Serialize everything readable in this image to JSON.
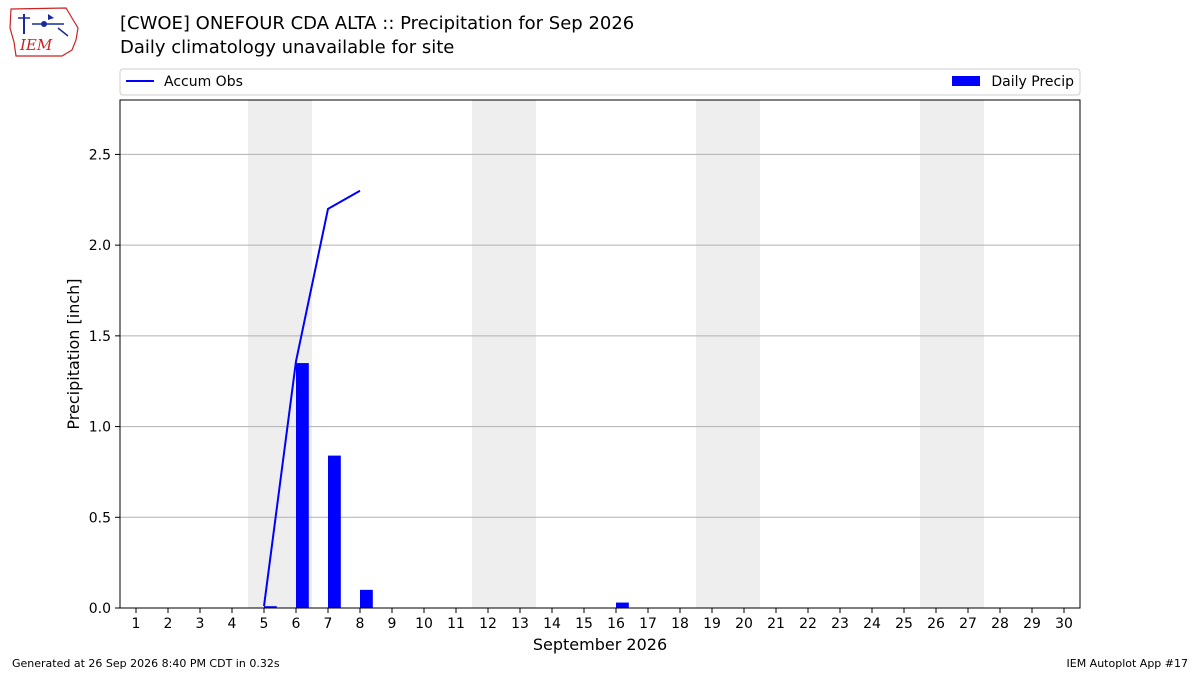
{
  "header": {
    "title": "[CWOE] ONEFOUR CDA  ALTA :: Precipitation for Sep 2026",
    "subtitle": "Daily climatology unavailable for site",
    "logo_text": "IEM"
  },
  "footer": {
    "left": "Generated at 26 Sep 2026 8:40 PM CDT in 0.32s",
    "right": "IEM Autoplot App #17"
  },
  "chart_data": {
    "type": "bar",
    "xlabel": "September 2026",
    "ylabel": "Precipitation [inch]",
    "ylim": [
      0,
      2.8
    ],
    "yticks": [
      "0.0",
      "0.5",
      "1.0",
      "1.5",
      "2.0",
      "2.5"
    ],
    "categories": [
      "1",
      "2",
      "3",
      "4",
      "5",
      "6",
      "7",
      "8",
      "9",
      "10",
      "11",
      "12",
      "13",
      "14",
      "15",
      "16",
      "17",
      "18",
      "19",
      "20",
      "21",
      "22",
      "23",
      "24",
      "25",
      "26",
      "27",
      "28",
      "29",
      "30"
    ],
    "grid": "horizontal",
    "legend_placement": "top",
    "weekend_shading": [
      [
        5,
        6
      ],
      [
        12,
        13
      ],
      [
        19,
        20
      ],
      [
        26,
        27
      ]
    ],
    "series": [
      {
        "name": "Daily Precip",
        "kind": "bar",
        "color": "#0000ff",
        "values": [
          0,
          0,
          0,
          0,
          0.01,
          1.35,
          0.84,
          0.1,
          0,
          0,
          0,
          0,
          0,
          0,
          0,
          0.03,
          0,
          0,
          0,
          0,
          0,
          0,
          0,
          0,
          0,
          0,
          0,
          0,
          0,
          0
        ]
      },
      {
        "name": "Accum Obs",
        "kind": "line",
        "color": "#0000ff",
        "x": [
          5,
          6,
          7,
          8
        ],
        "values": [
          0.01,
          1.36,
          2.2,
          2.3
        ]
      }
    ]
  }
}
